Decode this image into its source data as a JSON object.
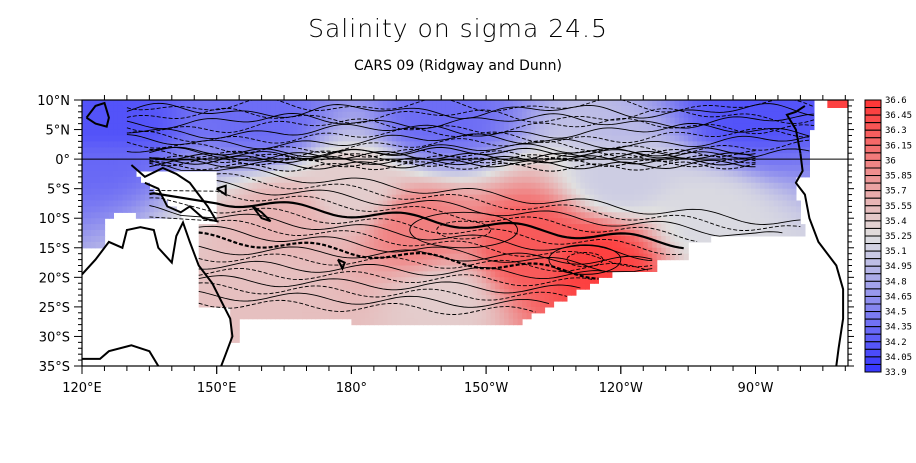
{
  "chart_data": {
    "type": "heatmap",
    "title": "Salinity on sigma 24.5",
    "subtitle": "CARS 09 (Ridgway and Dunn)",
    "xlabel": "",
    "ylabel": "",
    "xlim_deg_east": [
      120,
      291
    ],
    "ylim_deg_north": [
      -35,
      10
    ],
    "x_ticks": [
      {
        "lon": 120,
        "label": "120°E"
      },
      {
        "lon": 150,
        "label": "150°E"
      },
      {
        "lon": 180,
        "label": "180°"
      },
      {
        "lon": 210,
        "label": "150°W"
      },
      {
        "lon": 240,
        "label": "120°W"
      },
      {
        "lon": 270,
        "label": "90°W"
      }
    ],
    "y_ticks": [
      {
        "lat": 10,
        "label": "10°N"
      },
      {
        "lat": 5,
        "label": "5°N"
      },
      {
        "lat": 0,
        "label": "0°"
      },
      {
        "lat": -5,
        "label": "5°S"
      },
      {
        "lat": -10,
        "label": "10°S"
      },
      {
        "lat": -15,
        "label": "15°S"
      },
      {
        "lat": -20,
        "label": "20°S"
      },
      {
        "lat": -25,
        "label": "25°S"
      },
      {
        "lat": -30,
        "label": "30°S"
      },
      {
        "lat": -35,
        "label": "35°S"
      }
    ],
    "colorbar": {
      "min": 33.9,
      "max": 36.6,
      "step": 0.075,
      "labels": [
        "36.6",
        "36.45",
        "36.3",
        "36.15",
        "36",
        "35.85",
        "35.7",
        "35.55",
        "35.4",
        "35.25",
        "35.1",
        "34.95",
        "34.8",
        "34.65",
        "34.5",
        "34.35",
        "34.2",
        "34.05",
        "33.9"
      ],
      "color_high": "#ff3333",
      "color_mid": "#e0e0e0",
      "color_low": "#3333ff"
    },
    "features": {
      "equator_line": true,
      "contours": "solid and dashed black isolines",
      "salinity_max_region": "South Pacific subtropical gyre near 15°S 130°W, ~36.4",
      "salinity_min_region": "Western Pacific warm pool & eastern tropical North Pacific, ~34.2"
    },
    "field_samples": [
      {
        "lon": 125,
        "lat": 5,
        "value": 34.3
      },
      {
        "lon": 160,
        "lat": 6,
        "value": 34.5
      },
      {
        "lon": 200,
        "lat": 6,
        "value": 34.5
      },
      {
        "lon": 270,
        "lat": 7,
        "value": 34.3
      },
      {
        "lon": 180,
        "lat": -5,
        "value": 35.4
      },
      {
        "lon": 240,
        "lat": -3,
        "value": 35.1
      },
      {
        "lon": 165,
        "lat": -10,
        "value": 35.6
      },
      {
        "lon": 195,
        "lat": -12,
        "value": 36.0
      },
      {
        "lon": 220,
        "lat": -15,
        "value": 36.3
      },
      {
        "lon": 235,
        "lat": -18,
        "value": 36.5
      },
      {
        "lon": 160,
        "lat": -22,
        "value": 35.5
      },
      {
        "lon": 200,
        "lat": -24,
        "value": 35.4
      },
      {
        "lon": 260,
        "lat": -10,
        "value": 35.2
      }
    ]
  }
}
